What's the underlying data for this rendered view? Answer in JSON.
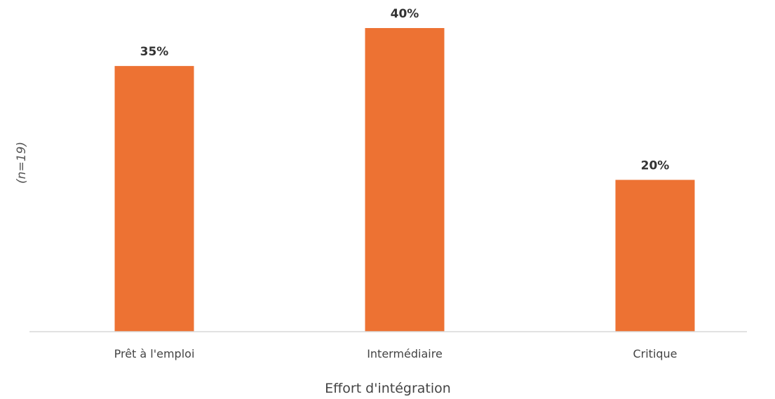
{
  "chart_data": {
    "type": "bar",
    "categories": [
      "Prêt à l'emploi",
      "Intermédiaire",
      "Critique"
    ],
    "values": [
      35,
      40,
      20
    ],
    "value_labels": [
      "35%",
      "40%",
      "20%"
    ],
    "title": "",
    "xlabel": "Effort d'intégration",
    "ylabel": "(n=19)",
    "ylim": [
      0,
      40
    ],
    "grid": false,
    "bar_color": "#ED7233",
    "axis_color": "#D9D9D9"
  }
}
